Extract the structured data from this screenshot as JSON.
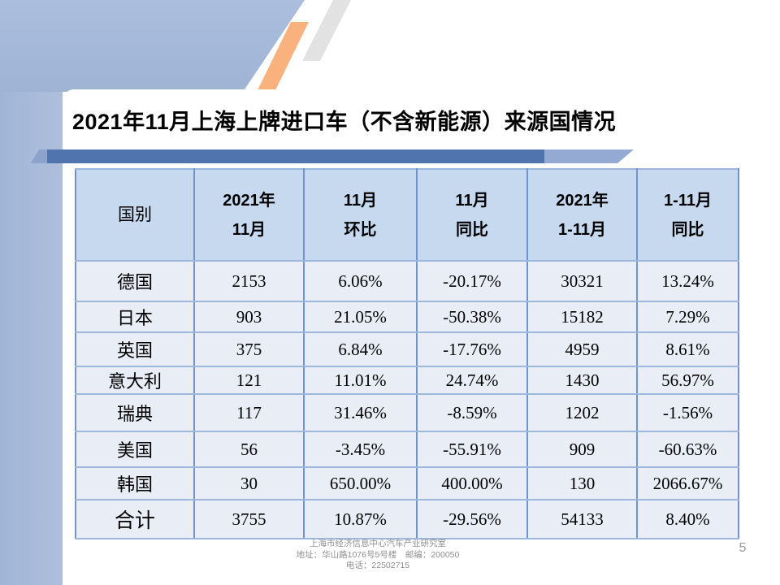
{
  "slide": {
    "title": "2021年11月上海上牌进口车（不含新能源）来源国情况",
    "page_number": "5"
  },
  "table": {
    "columns": [
      "国别",
      "2021年\n11月",
      "11月\n环比",
      "11月\n同比",
      "2021年\n1-11月",
      "1-11月\n同比"
    ],
    "rows": [
      {
        "country": "德国",
        "values": [
          "2153",
          "6.06%",
          "-20.17%",
          "30321",
          "13.24%"
        ],
        "is_total": false
      },
      {
        "country": "日本",
        "values": [
          "903",
          "21.05%",
          "-50.38%",
          "15182",
          "7.29%"
        ],
        "is_total": false
      },
      {
        "country": "英国",
        "values": [
          "375",
          "6.84%",
          "-17.76%",
          "4959",
          "8.61%"
        ],
        "is_total": false
      },
      {
        "country": "意大利",
        "values": [
          "121",
          "11.01%",
          "24.74%",
          "1430",
          "56.97%"
        ],
        "is_total": false
      },
      {
        "country": "瑞典",
        "values": [
          "117",
          "31.46%",
          "-8.59%",
          "1202",
          "-1.56%"
        ],
        "is_total": false
      },
      {
        "country": "美国",
        "values": [
          "56",
          "-3.45%",
          "-55.91%",
          "909",
          "-60.63%"
        ],
        "is_total": false
      },
      {
        "country": "韩国",
        "values": [
          "30",
          "650.00%",
          "400.00%",
          "130",
          "2066.67%"
        ],
        "is_total": false
      },
      {
        "country": "合计",
        "values": [
          "3755",
          "10.87%",
          "-29.56%",
          "54133",
          "8.40%"
        ],
        "is_total": true
      }
    ]
  },
  "footer": {
    "lines": [
      "上海市经济信息中心汽车产业研究室",
      "地址：华山路1076号5号楼　邮编：200050",
      "电话：22502715"
    ]
  },
  "colors": {
    "band_blue": "#a7bbd9",
    "accent_orange": "#f9b27d",
    "stripe_gray": "#e2e2e2",
    "bar_dark_blue": "#4f74ae",
    "bar_light_blue": "#94aad2",
    "bar_cap_blue": "#8ca3cc",
    "table_header_fill": "#c6d9ef",
    "table_row_fill": "#e9edf6",
    "table_border_vertical": "#7293c8",
    "table_border_horizontal": "#9cb6dc",
    "footer_gray": "#8f8f8f"
  }
}
